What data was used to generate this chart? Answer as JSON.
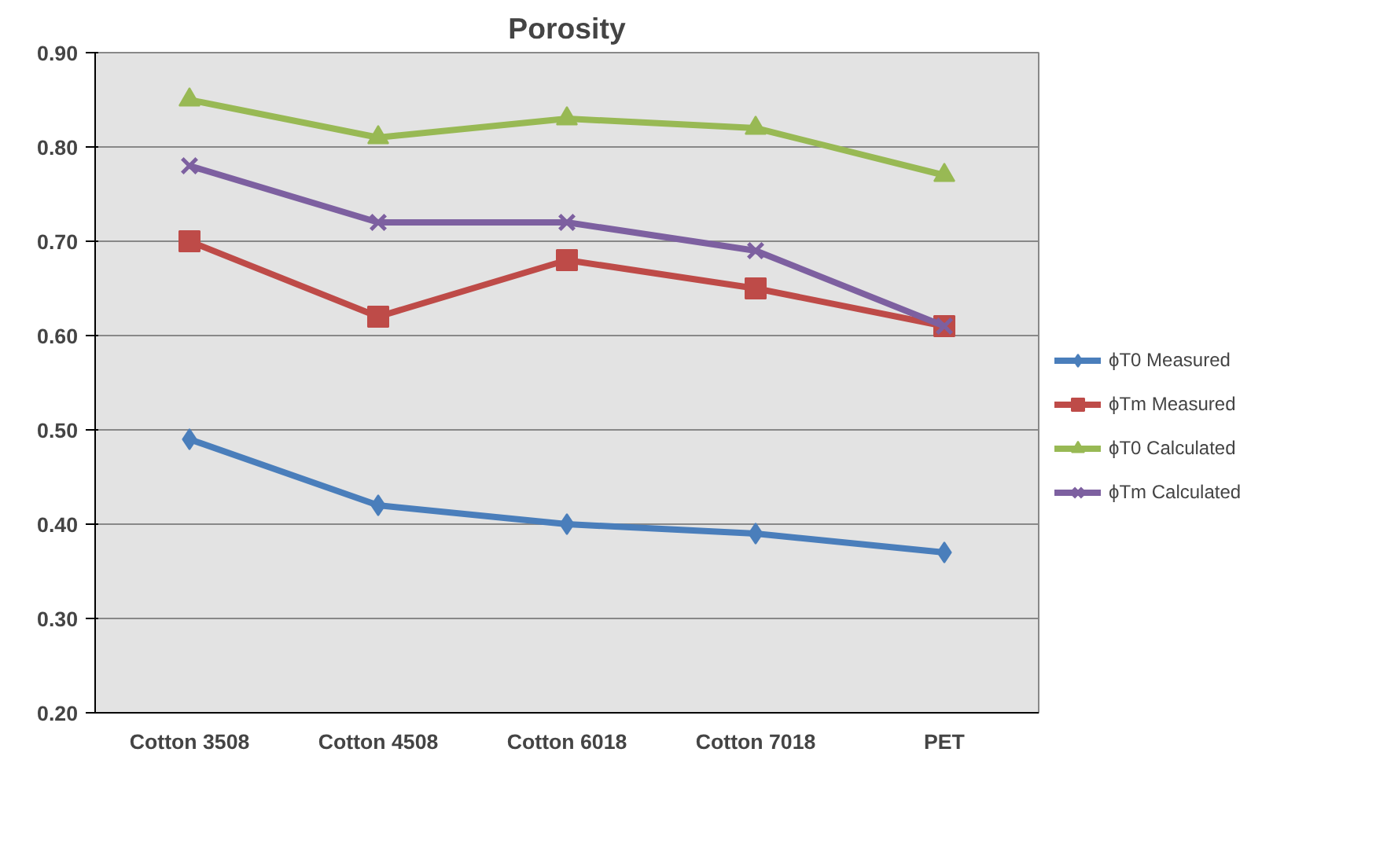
{
  "chart_data": {
    "type": "line",
    "title": "Porosity",
    "categories": [
      "Cotton 3508",
      "Cotton 4508",
      "Cotton 6018",
      "Cotton 7018",
      "PET"
    ],
    "series": [
      {
        "name": "ϕT0 Measured",
        "color": "#4a7ebb",
        "marker": "diamond",
        "values": [
          0.49,
          0.42,
          0.4,
          0.39,
          0.37
        ]
      },
      {
        "name": "ϕTm Measured",
        "color": "#be4b48",
        "marker": "square",
        "values": [
          0.7,
          0.62,
          0.68,
          0.65,
          0.61
        ]
      },
      {
        "name": "ϕT0 Calculated",
        "color": "#98b954",
        "marker": "triangle",
        "values": [
          0.85,
          0.81,
          0.83,
          0.82,
          0.77
        ]
      },
      {
        "name": "ϕTm Calculated",
        "color": "#7d60a0",
        "marker": "cross",
        "values": [
          0.78,
          0.72,
          0.72,
          0.69,
          0.61
        ]
      }
    ],
    "ylim": [
      0.2,
      0.9
    ],
    "yticks": [
      {
        "value": 0.2,
        "label": "0.20"
      },
      {
        "value": 0.3,
        "label": "0.30"
      },
      {
        "value": 0.4,
        "label": "0.40"
      },
      {
        "value": 0.5,
        "label": "0.50"
      },
      {
        "value": 0.6,
        "label": "0.60"
      },
      {
        "value": 0.7,
        "label": "0.70"
      },
      {
        "value": 0.8,
        "label": "0.80"
      },
      {
        "value": 0.9,
        "label": "0.90"
      }
    ],
    "grid": "y",
    "legend": "right",
    "line_style": "solid"
  }
}
